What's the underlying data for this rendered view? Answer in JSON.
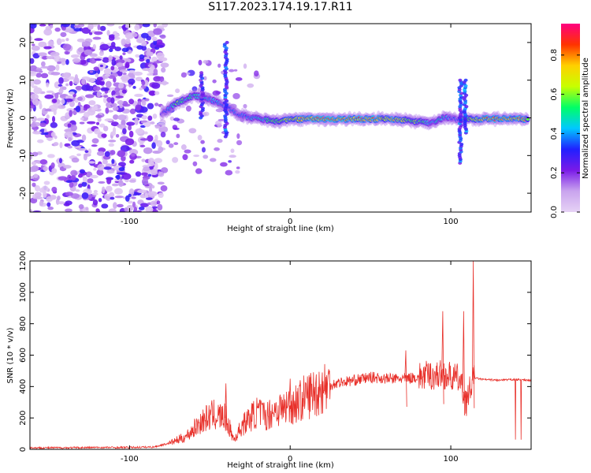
{
  "title": "S117.2023.174.19.17.R11",
  "chart_data": [
    {
      "type": "heatmap",
      "xlabel": "Height of straight line (km)",
      "ylabel": "Frequency (Hz)",
      "xlim": [
        -162,
        150
      ],
      "ylim": [
        -25,
        25
      ],
      "xticks": [
        "-100",
        "0",
        "100"
      ],
      "yticks": [
        "-20",
        "-10",
        "0",
        "10",
        "20"
      ],
      "colorbar": {
        "label": "Normalized spectral amplitude",
        "ticks": [
          "0.0",
          "0.2",
          "0.4",
          "0.6",
          "0.8"
        ],
        "colors": [
          "#e6d2f5",
          "#c9a4ee",
          "#7a1ae8",
          "#2020ff",
          "#00c8ff",
          "#00ff66",
          "#c8ff00",
          "#ffd000",
          "#ff3300",
          "#ff0080"
        ]
      },
      "ridge": {
        "x": [
          -80,
          -70,
          -60,
          -50,
          -40,
          -32,
          -25,
          -15,
          -10,
          0,
          10,
          20,
          30,
          40,
          50,
          60,
          70,
          80,
          88,
          95,
          100,
          105,
          110,
          120,
          130,
          140,
          148
        ],
        "frequency": [
          1,
          4,
          6,
          5,
          3,
          1,
          0,
          -0.5,
          -1,
          -0.5,
          -0.3,
          -0.3,
          -0.3,
          -0.3,
          -0.3,
          -0.3,
          -0.5,
          -1,
          -1.5,
          0,
          0,
          -0.5,
          -0.3,
          -0.3,
          -0.3,
          -0.3,
          -0.3
        ],
        "amplitude": [
          0.3,
          0.6,
          0.5,
          0.45,
          0.4,
          0.35,
          0.45,
          0.5,
          0.6,
          0.75,
          0.85,
          0.9,
          0.9,
          0.85,
          0.85,
          0.8,
          0.75,
          0.6,
          0.45,
          0.5,
          0.4,
          0.35,
          0.6,
          0.85,
          0.85,
          0.85,
          0.75
        ]
      }
    },
    {
      "type": "line",
      "xlabel": "Height of straight line (km)",
      "ylabel": "SNR (10 * v/v)",
      "xlim": [
        -162,
        150
      ],
      "ylim": [
        0,
        1200
      ],
      "xticks": [
        "-100",
        "0",
        "100"
      ],
      "yticks": [
        "0",
        "200",
        "400",
        "600",
        "800",
        "1000",
        "1200"
      ],
      "color": "#e8302a",
      "series": [
        {
          "x": [
            -162,
            -140,
            -120,
            -100,
            -85,
            -75,
            -65,
            -55,
            -48,
            -40,
            -35,
            -30,
            -25,
            -20,
            -15,
            -10,
            -5,
            0,
            5,
            10,
            15,
            20,
            25,
            30,
            40,
            50,
            60,
            70,
            80,
            85,
            90,
            95,
            100,
            105,
            110,
            113,
            115,
            120,
            130,
            140,
            150
          ],
          "y": [
            10,
            10,
            12,
            12,
            15,
            40,
            80,
            180,
            220,
            200,
            60,
            150,
            200,
            240,
            210,
            250,
            260,
            280,
            300,
            340,
            360,
            390,
            410,
            425,
            440,
            460,
            450,
            450,
            460,
            470,
            470,
            480,
            460,
            450,
            300,
            420,
            455,
            445,
            440,
            445,
            440
          ]
        }
      ],
      "peaks": [
        {
          "x": -40,
          "y": 420
        },
        {
          "x": 0,
          "y": 450
        },
        {
          "x": 72,
          "y": 630
        },
        {
          "x": 95,
          "y": 880
        },
        {
          "x": 108,
          "y": 880
        },
        {
          "x": 114,
          "y": 1200
        }
      ]
    }
  ]
}
